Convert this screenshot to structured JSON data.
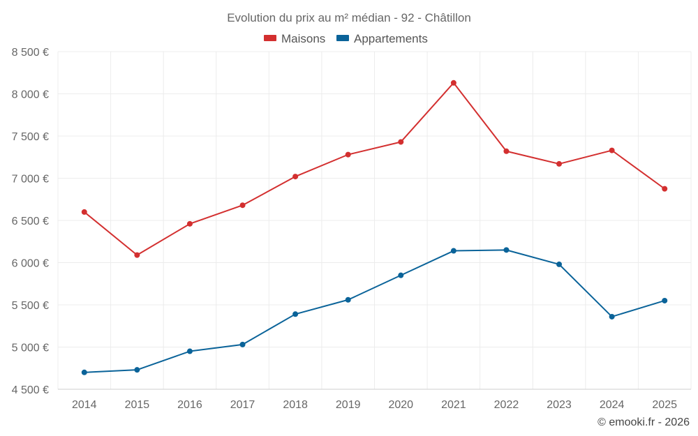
{
  "chart_data": {
    "type": "line",
    "title": "Evolution du prix au m² médian - 92 - Châtillon",
    "categories": [
      "2014",
      "2015",
      "2016",
      "2017",
      "2018",
      "2019",
      "2020",
      "2021",
      "2022",
      "2023",
      "2024",
      "2025"
    ],
    "series": [
      {
        "name": "Maisons",
        "color": "#d32f2f",
        "values": [
          6600,
          6090,
          6460,
          6680,
          7020,
          7280,
          7430,
          8130,
          7320,
          7170,
          7330,
          6875
        ]
      },
      {
        "name": "Appartements",
        "color": "#0a6399",
        "values": [
          4700,
          4730,
          4950,
          5030,
          5390,
          5560,
          5850,
          6140,
          6150,
          5980,
          5360,
          5550
        ]
      }
    ],
    "ylim": [
      4500,
      8500
    ],
    "yticks": [
      4500,
      5000,
      5500,
      6000,
      6500,
      7000,
      7500,
      8000,
      8500
    ],
    "ytick_labels": [
      "4 500 €",
      "5 000 €",
      "5 500 €",
      "6 000 €",
      "6 500 €",
      "7 000 €",
      "7 500 €",
      "8 000 €",
      "8 500 €"
    ],
    "xlabel": "",
    "ylabel": "",
    "grid": true,
    "legend_position": "top-center"
  },
  "credit": "© emooki.fr - 2026"
}
